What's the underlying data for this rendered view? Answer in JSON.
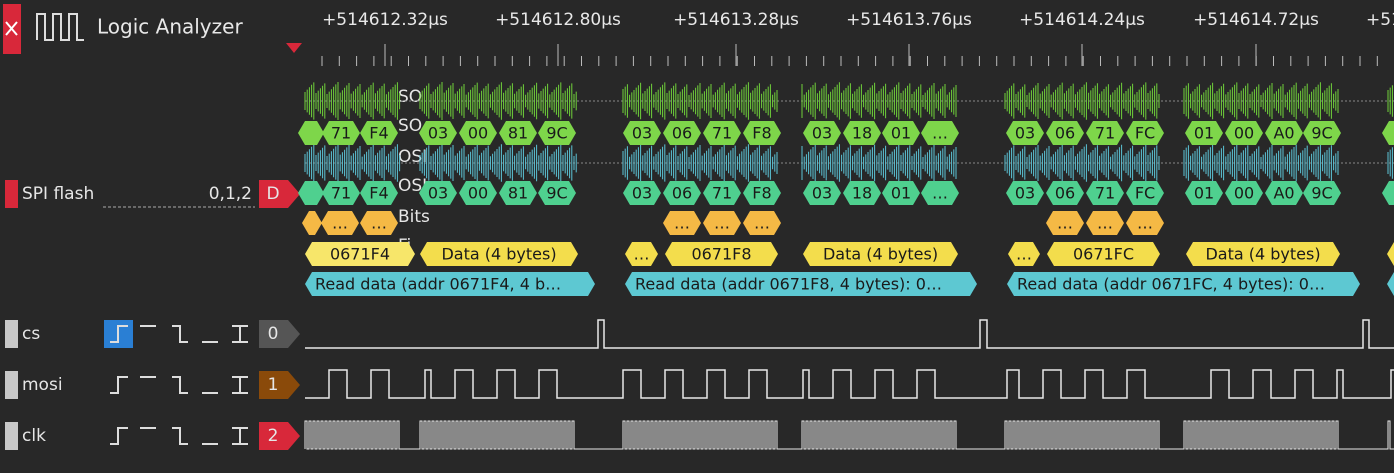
{
  "header": {
    "title": "Logic Analyzer"
  },
  "ruler": {
    "labels": [
      "+514612.32μs",
      "+514612.80μs",
      "+514613.28μs",
      "+514613.76μs",
      "+514614.24μs",
      "+514614.72μs",
      "+51"
    ]
  },
  "decoder": {
    "name": "SPI flash",
    "channels": "0,1,2",
    "badge": "D",
    "row_labels": [
      "SO",
      "SO",
      "OSI",
      "OSI",
      "Bits",
      "Fi"
    ],
    "so_bytes": [
      "71",
      "F4",
      "03",
      "00",
      "81",
      "9C",
      "03",
      "06",
      "71",
      "F8",
      "03",
      "18",
      "01",
      "…",
      "03",
      "06",
      "71",
      "FC",
      "01",
      "00",
      "A0",
      "9C"
    ],
    "si_bytes": [
      "71",
      "F4",
      "03",
      "00",
      "81",
      "9C",
      "03",
      "06",
      "71",
      "F8",
      "03",
      "18",
      "01",
      "…",
      "03",
      "06",
      "71",
      "FC",
      "01",
      "00",
      "A0",
      "9C"
    ],
    "bits": [
      "…",
      "…",
      "…",
      "…",
      "…",
      "…",
      "…",
      "…"
    ],
    "fields": [
      "0671F4",
      "Data (4 bytes)",
      "…",
      "0671F8",
      "Data (4 bytes)",
      "…",
      "0671FC",
      "Data (4 bytes)"
    ],
    "packets": [
      "Read data (addr 0671F4, 4 b…",
      "Read data (addr 0671F8, 4 bytes): 0…",
      "Read data (addr 0671FC, 4 bytes): 0…"
    ]
  },
  "channels": [
    {
      "name": "cs",
      "index": "0"
    },
    {
      "name": "mosi",
      "index": "1"
    },
    {
      "name": "clk",
      "index": "2"
    }
  ]
}
